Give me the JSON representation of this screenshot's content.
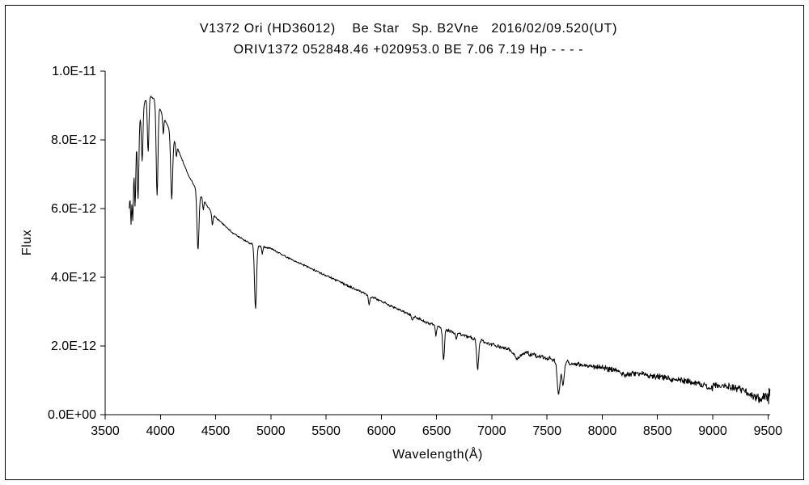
{
  "chart_data": {
    "type": "line",
    "title": "V1372 Ori (HD36012)    Be Star   Sp. B2Vne   2016/02/09.520(UT)",
    "subtitle": "ORIV1372 052848.46 +020953.0 BE 7.06 7.19 Hp - - - -",
    "xlabel": "Wavelength(Å)",
    "ylabel": "Flux",
    "xlim": [
      3500,
      9520
    ],
    "ylim": [
      0,
      1e-11
    ],
    "grid": false,
    "legend": "none",
    "background": "#ffffff",
    "axis_color": "#000000",
    "line_color": "#000000",
    "x_ticks": [
      3500,
      4000,
      4500,
      5000,
      5500,
      6000,
      6500,
      7000,
      7500,
      8000,
      8500,
      9000,
      9500
    ],
    "y_ticks": [
      {
        "value": 0,
        "label": "0.0E+00"
      },
      {
        "value": 2e-12,
        "label": "2.0E-12"
      },
      {
        "value": 4e-12,
        "label": "4.0E-12"
      },
      {
        "value": 6e-12,
        "label": "6.0E-12"
      },
      {
        "value": 8e-12,
        "label": "8.0E-12"
      },
      {
        "value": 1e-11,
        "label": "1.0E-11"
      }
    ],
    "flux_scale": 1e-12,
    "spectrum": {
      "sample_step_angstrom": 4,
      "wavelength_range": [
        3718,
        9520
      ],
      "continuum_points": [
        [
          3718,
          6.0
        ],
        [
          3730,
          6.9
        ],
        [
          3745,
          7.3
        ],
        [
          3765,
          7.8
        ],
        [
          3785,
          8.2
        ],
        [
          3810,
          8.6
        ],
        [
          3840,
          8.95
        ],
        [
          3870,
          9.2
        ],
        [
          3900,
          9.3
        ],
        [
          3940,
          9.2
        ],
        [
          3980,
          9.05
        ],
        [
          4020,
          8.7
        ],
        [
          4060,
          8.45
        ],
        [
          4100,
          8.2
        ],
        [
          4150,
          7.8
        ],
        [
          4200,
          7.4
        ],
        [
          4250,
          7.0
        ],
        [
          4300,
          6.7
        ],
        [
          4350,
          6.45
        ],
        [
          4400,
          6.2
        ],
        [
          4450,
          5.95
        ],
        [
          4500,
          5.75
        ],
        [
          4550,
          5.6
        ],
        [
          4600,
          5.45
        ],
        [
          4650,
          5.3
        ],
        [
          4700,
          5.2
        ],
        [
          4750,
          5.1
        ],
        [
          4800,
          5.0
        ],
        [
          4850,
          4.95
        ],
        [
          4900,
          4.9
        ],
        [
          5000,
          4.85
        ],
        [
          5100,
          4.65
        ],
        [
          5200,
          4.5
        ],
        [
          5300,
          4.35
        ],
        [
          5400,
          4.2
        ],
        [
          5500,
          4.05
        ],
        [
          5600,
          3.9
        ],
        [
          5700,
          3.75
        ],
        [
          5800,
          3.6
        ],
        [
          5900,
          3.45
        ],
        [
          6000,
          3.3
        ],
        [
          6100,
          3.15
        ],
        [
          6200,
          3.0
        ],
        [
          6300,
          2.85
        ],
        [
          6400,
          2.7
        ],
        [
          6500,
          2.6
        ],
        [
          6600,
          2.45
        ],
        [
          6700,
          2.35
        ],
        [
          6800,
          2.25
        ],
        [
          6900,
          2.15
        ],
        [
          7000,
          2.05
        ],
        [
          7100,
          1.95
        ],
        [
          7200,
          1.88
        ],
        [
          7300,
          1.8
        ],
        [
          7400,
          1.72
        ],
        [
          7500,
          1.65
        ],
        [
          7600,
          1.58
        ],
        [
          7700,
          1.5
        ],
        [
          7800,
          1.45
        ],
        [
          7900,
          1.4
        ],
        [
          8000,
          1.36
        ],
        [
          8100,
          1.3
        ],
        [
          8200,
          1.26
        ],
        [
          8300,
          1.2
        ],
        [
          8400,
          1.15
        ],
        [
          8500,
          1.1
        ],
        [
          8600,
          1.05
        ],
        [
          8700,
          1.0
        ],
        [
          8800,
          0.95
        ],
        [
          8900,
          0.9
        ],
        [
          9000,
          0.87
        ],
        [
          9100,
          0.83
        ],
        [
          9200,
          0.78
        ],
        [
          9300,
          0.72
        ],
        [
          9400,
          0.65
        ],
        [
          9520,
          0.52
        ]
      ],
      "absorption_features": [
        {
          "center": 3734,
          "depth": 1.4,
          "sigma": 5
        },
        {
          "center": 3750,
          "depth": 1.75,
          "sigma": 6
        },
        {
          "center": 3771,
          "depth": 1.85,
          "sigma": 6
        },
        {
          "center": 3798,
          "depth": 2.1,
          "sigma": 7
        },
        {
          "center": 3835,
          "depth": 1.5,
          "sigma": 7
        },
        {
          "center": 3889,
          "depth": 1.6,
          "sigma": 7
        },
        {
          "center": 3970,
          "depth": 2.7,
          "sigma": 8
        },
        {
          "center": 4026,
          "depth": 0.5,
          "sigma": 5
        },
        {
          "center": 4102,
          "depth": 1.9,
          "sigma": 9
        },
        {
          "center": 4144,
          "depth": 0.35,
          "sigma": 5
        },
        {
          "center": 4340,
          "depth": 1.7,
          "sigma": 9
        },
        {
          "center": 4388,
          "depth": 0.3,
          "sigma": 5
        },
        {
          "center": 4471,
          "depth": 0.35,
          "sigma": 6
        },
        {
          "center": 4861,
          "depth": 1.85,
          "sigma": 9
        },
        {
          "center": 4922,
          "depth": 0.2,
          "sigma": 5
        },
        {
          "center": 5890,
          "depth": 0.25,
          "sigma": 7
        },
        {
          "center": 6280,
          "depth": 0.12,
          "sigma": 7
        },
        {
          "center": 6495,
          "depth": 0.3,
          "sigma": 6
        },
        {
          "center": 6563,
          "depth": 0.95,
          "sigma": 8
        },
        {
          "center": 6678,
          "depth": 0.15,
          "sigma": 5
        },
        {
          "center": 6872,
          "depth": 0.85,
          "sigma": 9
        },
        {
          "center": 7230,
          "depth": 0.22,
          "sigma": 28
        },
        {
          "center": 7605,
          "depth": 0.95,
          "sigma": 13
        },
        {
          "center": 7645,
          "depth": 0.65,
          "sigma": 11
        },
        {
          "center": 8200,
          "depth": 0.1,
          "sigma": 35
        },
        {
          "center": 8970,
          "depth": 0.08,
          "sigma": 45
        },
        {
          "center": 9400,
          "depth": 0.18,
          "sigma": 55
        }
      ],
      "noise": {
        "base": 0.05,
        "growth": 0.25,
        "tail_start": 9280,
        "tail_amp": 0.3
      }
    }
  }
}
